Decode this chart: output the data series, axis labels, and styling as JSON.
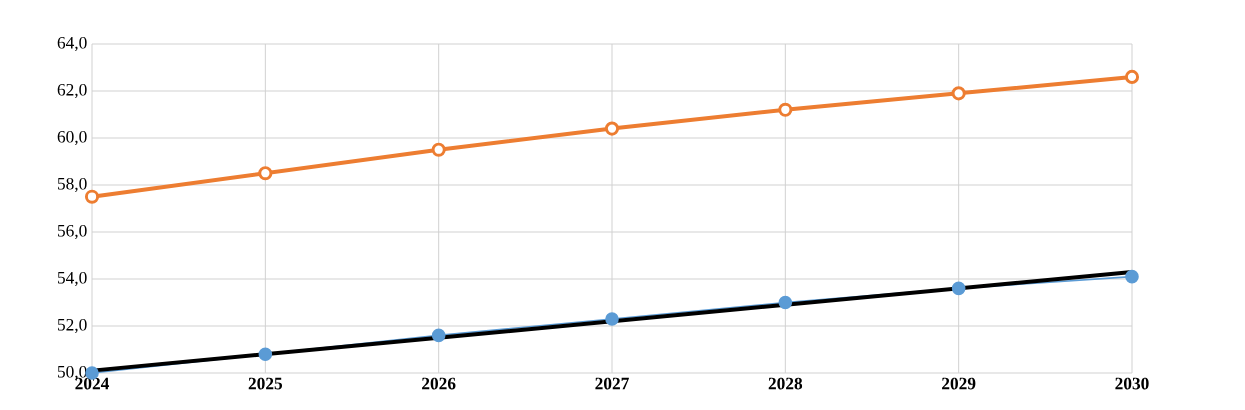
{
  "chart_data": {
    "type": "line",
    "x": [
      2024,
      2025,
      2026,
      2027,
      2028,
      2029,
      2030
    ],
    "series": [
      {
        "color": "#ed7d31",
        "marker": "circle",
        "values": [
          57.5,
          58.5,
          59.5,
          60.4,
          61.2,
          61.9,
          62.6
        ]
      },
      {
        "color": "#5b9bd5",
        "marker": "circle",
        "values": [
          50.0,
          50.8,
          51.6,
          52.3,
          53.0,
          53.6,
          54.1
        ]
      },
      {
        "color": "#000000",
        "marker": "none",
        "x": [
          2024,
          2030
        ],
        "values": [
          50.1,
          54.3
        ]
      }
    ],
    "xlim": [
      2024,
      2030
    ],
    "xticks": [
      2024,
      2025,
      2026,
      2027,
      2028,
      2029,
      2030
    ],
    "ylim": [
      50,
      64
    ],
    "yticks": [
      {
        "value": 50,
        "label": "50,0"
      },
      {
        "value": 52,
        "label": "52,0"
      },
      {
        "value": 54,
        "label": "54,0"
      },
      {
        "value": 56,
        "label": "56,0"
      },
      {
        "value": 58,
        "label": "58,0"
      },
      {
        "value": 60,
        "label": "60,0"
      },
      {
        "value": 62,
        "label": "62,0"
      },
      {
        "value": 64,
        "label": "64,0"
      }
    ],
    "grid": true
  }
}
